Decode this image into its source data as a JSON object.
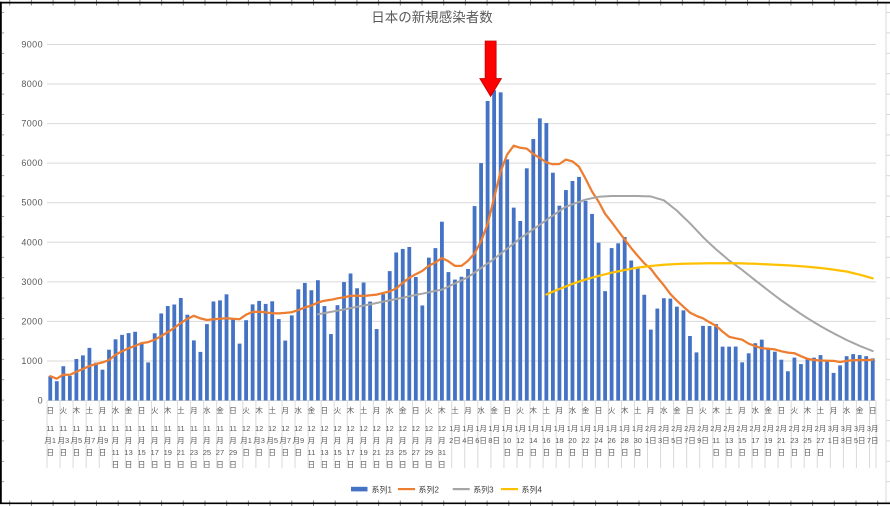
{
  "page": {
    "background": "#ffffff",
    "sheet_border_color": "#000000",
    "sheet_tick_color": "#8a8a8a",
    "chart_border_color": "#d9d9d9"
  },
  "chart_data": {
    "type": "bar",
    "subtype": "combo-bar-line",
    "title": "日本の新規感染者数",
    "title_color": "#595959",
    "xlabel": "",
    "ylabel": "",
    "axis": {
      "ylim": [
        0,
        9000
      ],
      "y_tick_step": 1000,
      "y_ticks": [
        "0",
        "1000",
        "2000",
        "3000",
        "4000",
        "5000",
        "6000",
        "7000",
        "8000",
        "9000"
      ],
      "gridlines": "horizontal",
      "gridline_color": "#d9d9d9",
      "label_color": "#595959",
      "x_label_interval_days": 2
    },
    "legend": {
      "position": "bottom",
      "text_color": "#404040"
    },
    "x_labels": [
      [
        "日",
        "11",
        "月1",
        "日"
      ],
      [
        "火",
        "11",
        "月3",
        "日"
      ],
      [
        "木",
        "11",
        "月5",
        "日"
      ],
      [
        "土",
        "11",
        "月7",
        "日"
      ],
      [
        "月",
        "11",
        "月9",
        "日"
      ],
      [
        "水",
        "11",
        "月",
        "11",
        "日"
      ],
      [
        "金",
        "11",
        "月",
        "13",
        "日"
      ],
      [
        "日",
        "11",
        "月",
        "15",
        "日"
      ],
      [
        "火",
        "11",
        "月",
        "17",
        "日"
      ],
      [
        "木",
        "11",
        "月",
        "19",
        "日"
      ],
      [
        "土",
        "11",
        "月",
        "21",
        "日"
      ],
      [
        "月",
        "11",
        "月",
        "23",
        "日"
      ],
      [
        "水",
        "11",
        "月",
        "25",
        "日"
      ],
      [
        "金",
        "11",
        "月",
        "27",
        "日"
      ],
      [
        "日",
        "11",
        "月",
        "29",
        "日"
      ],
      [
        "火",
        "12",
        "月1",
        "日"
      ],
      [
        "木",
        "12",
        "月3",
        "日"
      ],
      [
        "土",
        "12",
        "月5",
        "日"
      ],
      [
        "月",
        "12",
        "月7",
        "日"
      ],
      [
        "水",
        "12",
        "月9",
        "日"
      ],
      [
        "金",
        "12",
        "月",
        "11",
        "日"
      ],
      [
        "日",
        "12",
        "月",
        "13",
        "日"
      ],
      [
        "火",
        "12",
        "月",
        "15",
        "日"
      ],
      [
        "木",
        "12",
        "月",
        "17",
        "日"
      ],
      [
        "土",
        "12",
        "月",
        "19",
        "日"
      ],
      [
        "月",
        "12",
        "月",
        "21",
        "日"
      ],
      [
        "水",
        "12",
        "月",
        "23",
        "日"
      ],
      [
        "金",
        "12",
        "月",
        "25",
        "日"
      ],
      [
        "日",
        "12",
        "月",
        "27",
        "日"
      ],
      [
        "火",
        "12",
        "月",
        "29",
        "日"
      ],
      [
        "木",
        "12",
        "月",
        "31",
        "日"
      ],
      [
        "土",
        "1月",
        "2日"
      ],
      [
        "月",
        "1月",
        "4日"
      ],
      [
        "水",
        "1月",
        "6日"
      ],
      [
        "金",
        "1月",
        "8日"
      ],
      [
        "日",
        "1月",
        "10",
        "日"
      ],
      [
        "火",
        "1月",
        "12",
        "日"
      ],
      [
        "木",
        "1月",
        "14",
        "日"
      ],
      [
        "土",
        "1月",
        "16",
        "日"
      ],
      [
        "月",
        "1月",
        "18",
        "日"
      ],
      [
        "水",
        "1月",
        "20",
        "日"
      ],
      [
        "金",
        "1月",
        "22",
        "日"
      ],
      [
        "日",
        "1月",
        "24",
        "日"
      ],
      [
        "火",
        "1月",
        "26",
        "日"
      ],
      [
        "木",
        "1月",
        "28",
        "日"
      ],
      [
        "土",
        "1月",
        "30",
        "日"
      ],
      [
        "月",
        "2月",
        "1日"
      ],
      [
        "水",
        "2月",
        "3日"
      ],
      [
        "金",
        "2月",
        "5日"
      ],
      [
        "日",
        "2月",
        "7日"
      ],
      [
        "火",
        "2月",
        "9日"
      ],
      [
        "木",
        "2月",
        "11",
        "日"
      ],
      [
        "土",
        "2月",
        "13",
        "日"
      ],
      [
        "月",
        "2月",
        "15",
        "日"
      ],
      [
        "水",
        "2月",
        "17",
        "日"
      ],
      [
        "金",
        "2月",
        "19",
        "日"
      ],
      [
        "日",
        "2月",
        "21",
        "日"
      ],
      [
        "火",
        "2月",
        "23",
        "日"
      ],
      [
        "木",
        "2月",
        "25",
        "日"
      ],
      [
        "土",
        "2月",
        "27",
        "日"
      ],
      [
        "月",
        "3月",
        "1日"
      ],
      [
        "水",
        "3月",
        "3日"
      ],
      [
        "金",
        "3月",
        "5日"
      ],
      [
        "日",
        "3月",
        "7日"
      ]
    ],
    "series": [
      {
        "name": "系列1",
        "type": "bar",
        "color": "#4472C4",
        "start_index": 0,
        "values": [
          614,
          488,
          867,
          622,
          1050,
          1141,
          1331,
          957,
          780,
          1284,
          1547,
          1660,
          1704,
          1737,
          1440,
          963,
          1699,
          2201,
          2388,
          2427,
          2592,
          2168,
          1520,
          1229,
          1931,
          2504,
          2531,
          2684,
          2066,
          1438,
          2030,
          2430,
          2518,
          2442,
          2508,
          2058,
          1515,
          2152,
          2811,
          2972,
          2787,
          3041,
          2387,
          1680,
          2410,
          2994,
          3211,
          2837,
          2982,
          2501,
          1806,
          2688,
          3271,
          3742,
          3832,
          3881,
          3123,
          2403,
          3612,
          3852,
          4520,
          3246,
          3057,
          3128,
          3325,
          4915,
          6001,
          7571,
          7844,
          7790,
          6096,
          4876,
          4539,
          5870,
          6610,
          7133,
          7014,
          5759,
          4925,
          5320,
          5549,
          5653,
          5045,
          4717,
          3990,
          2764,
          3853,
          3973,
          4133,
          3539,
          3344,
          2673,
          1792,
          2324,
          2585,
          2576,
          2372,
          2279,
          1631,
          1216,
          1887,
          1882,
          1933,
          1362,
          1361,
          1364,
          965,
          1193,
          1448,
          1538,
          1301,
          1234,
          1032,
          739,
          1084,
          921,
          1076,
          1083,
          1148,
          999,
          697,
          888,
          1121,
          1173,
          1148,
          1121,
          1066
        ]
      },
      {
        "name": "系列2",
        "type": "line",
        "color": "#ED7D31",
        "start_index": 0,
        "values": [
          614,
          551,
          656,
          648,
          728,
          797,
          873,
          922,
          964,
          1024,
          1156,
          1243,
          1323,
          1381,
          1450,
          1476,
          1536,
          1629,
          1733,
          1836,
          1959,
          2063,
          2142,
          2075,
          2036,
          2053,
          2068,
          2081,
          2066,
          2055,
          2169,
          2240,
          2242,
          2230,
          2205,
          2203,
          2214,
          2232,
          2286,
          2351,
          2400,
          2477,
          2524,
          2547,
          2584,
          2610,
          2644,
          2651,
          2643,
          2659,
          2677,
          2717,
          2757,
          2832,
          2975,
          3103,
          3192,
          3277,
          3409,
          3492,
          3603,
          3520,
          3402,
          3403,
          3534,
          3720,
          4027,
          4463,
          5120,
          5796,
          6220,
          6442,
          6388,
          6369,
          6232,
          6131,
          6020,
          5972,
          5979,
          6090,
          6044,
          5908,
          5609,
          5281,
          5028,
          4720,
          4510,
          4285,
          4068,
          3853,
          3657,
          3468,
          3330,
          3111,
          2913,
          2690,
          2524,
          2372,
          2223,
          2140,
          2078,
          1978,
          1886,
          1741,
          1610,
          1572,
          1536,
          1437,
          1375,
          1319,
          1310,
          1292,
          1244,
          1212,
          1197,
          1121,
          1055,
          1024,
          1012,
          1007,
          1001,
          973,
          1002,
          1016,
          1025,
          1021,
          1031
        ]
      },
      {
        "name": "系列3",
        "type": "line",
        "color": "#A5A5A5",
        "start_index": 41,
        "values": [
          2180,
          2210,
          2240,
          2270,
          2300,
          2335,
          2370,
          2400,
          2430,
          2465,
          2500,
          2530,
          2565,
          2600,
          2635,
          2670,
          2700,
          2735,
          2770,
          2800,
          2880,
          2960,
          3040,
          3120,
          3235,
          3350,
          3465,
          3580,
          3710,
          3840,
          3970,
          4100,
          4215,
          4330,
          4445,
          4560,
          4675,
          4790,
          4900,
          4960,
          5020,
          5080,
          5115,
          5150,
          5160,
          5170,
          5170,
          5170,
          5170,
          5170,
          5165,
          5160,
          5110,
          5060,
          4930,
          4800,
          4640,
          4480,
          4305,
          4130,
          3975,
          3820,
          3680,
          3540,
          3420,
          3300,
          3170,
          3040,
          2910,
          2780,
          2655,
          2530,
          2415,
          2300,
          2190,
          2080,
          1980,
          1880,
          1790,
          1700,
          1615,
          1530,
          1455,
          1380,
          1315,
          1250
        ]
      },
      {
        "name": "系列4",
        "type": "line",
        "color": "#FFC000",
        "start_index": 76,
        "values": [
          2680,
          2750,
          2820,
          2885,
          2950,
          3005,
          3060,
          3105,
          3150,
          3190,
          3230,
          3265,
          3300,
          3330,
          3360,
          3380,
          3400,
          3415,
          3430,
          3440,
          3450,
          3455,
          3460,
          3463,
          3465,
          3468,
          3470,
          3470,
          3470,
          3468,
          3465,
          3460,
          3455,
          3448,
          3440,
          3433,
          3425,
          3415,
          3405,
          3393,
          3380,
          3365,
          3350,
          3330,
          3310,
          3285,
          3260,
          3220,
          3180,
          3135,
          3090
        ]
      }
    ],
    "annotation": {
      "shape": "down-arrow",
      "color": "#FF0000",
      "border_color": "#C00000",
      "x_index": 68,
      "points_at_label": "1月8日",
      "points_at_value": 7844
    }
  }
}
